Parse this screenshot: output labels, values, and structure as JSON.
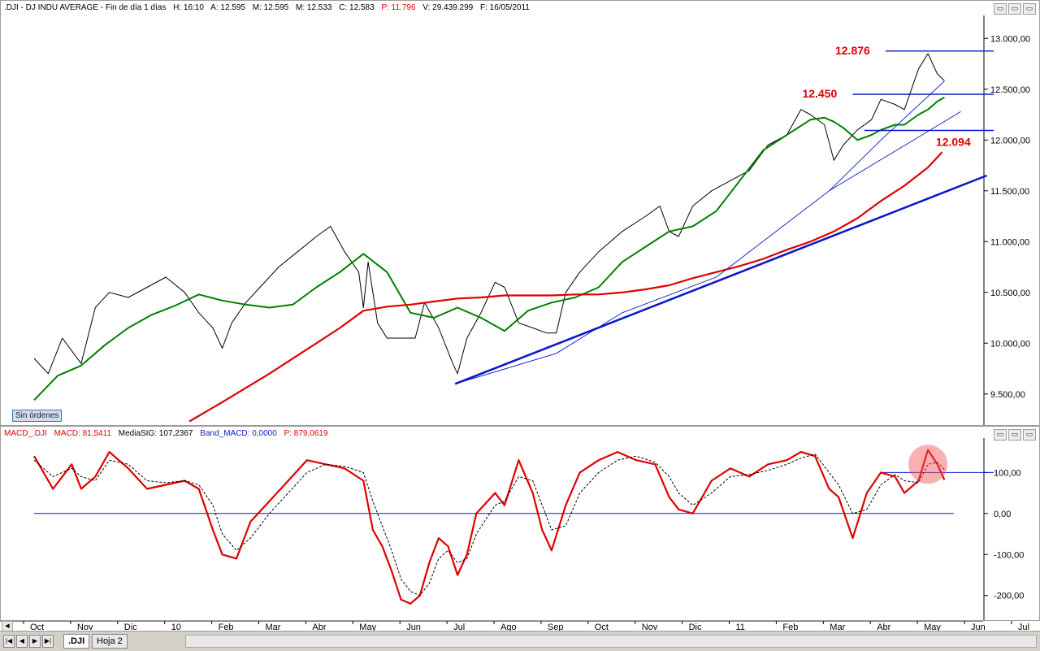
{
  "header": {
    "symbol": ".DJI - DJ INDU AVERAGE - Fin de día 1 días",
    "high": "H: 16:10",
    "open": "A: 12.595",
    "max": "M: 12.595",
    "low": "M: 12.533",
    "close": "C: 12.583",
    "change": "P: 11.796",
    "volume": "V: 29.439.299",
    "date": "F: 16/05/2011"
  },
  "macd_header": {
    "name": "MACD_.DJI",
    "macd": "MACD: 81,5411",
    "signal": "MediaSIG: 107,2367",
    "band": "Band_MACD: 0,0000",
    "p": "P: 879,0619"
  },
  "badge": "Sin órdenes",
  "tabs": [
    ".DJI",
    "Hoja 2"
  ],
  "nav_buttons": [
    "|◀",
    "◀",
    "▶",
    "▶|"
  ],
  "window_buttons": [
    "▭",
    "▭",
    "▭"
  ],
  "colors": {
    "price": "#000000",
    "ma_short": "#008000",
    "ma_long": "#e00000",
    "trend": "#0a18c8",
    "macd": "#e00000",
    "signal": "#000000",
    "annotation": "#e00000"
  },
  "chart_data": [
    {
      "type": "line",
      "panel": "price",
      "y_axis_labels": [
        "13.000,00",
        "12.500,00",
        "12.000,00",
        "11.500,00",
        "11.000,00",
        "10.500,00",
        "10.000,00",
        "9.500,00"
      ],
      "y_ticks": [
        13000,
        12500,
        12000,
        11500,
        11000,
        10500,
        10000,
        9500
      ],
      "ylim": [
        9210,
        13130
      ],
      "x_labels": [
        "Oct",
        "Nov",
        "Dic",
        "10",
        "Feb",
        "Mar",
        "Abr",
        "May",
        "Jun",
        "Jul",
        "Ago",
        "Sep",
        "Oct",
        "Nov",
        "Dic",
        "11",
        "Feb",
        "Mar",
        "Abr",
        "May",
        "Jun",
        "Jul"
      ],
      "x_label_months": [
        0,
        1,
        2,
        3,
        4,
        5,
        6,
        7,
        8,
        9,
        10,
        11,
        12,
        13,
        14,
        15,
        16,
        17,
        18,
        19,
        20,
        21
      ],
      "series": [
        {
          "role": "close",
          "x": [
            0,
            0.3,
            0.6,
            1.0,
            1.3,
            1.6,
            2.0,
            2.4,
            2.8,
            3.2,
            3.5,
            3.8,
            4.0,
            4.2,
            4.5,
            4.8,
            5.2,
            5.6,
            6.0,
            6.3,
            6.6,
            6.9,
            7.0,
            7.1,
            7.3,
            7.5,
            7.8,
            8.1,
            8.3,
            8.6,
            8.9,
            9.0,
            9.2,
            9.5,
            9.8,
            10.0,
            10.3,
            10.6,
            10.9,
            11.1,
            11.3,
            11.6,
            12.0,
            12.5,
            13.0,
            13.3,
            13.5,
            13.7,
            14.0,
            14.4,
            14.8,
            15.2,
            15.6,
            16.0,
            16.3,
            16.5,
            16.8,
            17.0,
            17.2,
            17.5,
            17.8,
            18.0,
            18.3,
            18.5,
            18.8,
            19.0,
            19.2,
            19.35
          ],
          "y": [
            9850,
            9700,
            10050,
            9800,
            10350,
            10500,
            10450,
            10550,
            10650,
            10500,
            10300,
            10150,
            9950,
            10200,
            10400,
            10550,
            10750,
            10900,
            11050,
            11150,
            10900,
            10700,
            10350,
            10800,
            10200,
            10050,
            10050,
            10050,
            10400,
            10150,
            9800,
            9700,
            10050,
            10300,
            10600,
            10550,
            10200,
            10150,
            10100,
            10100,
            10500,
            10700,
            10900,
            11100,
            11250,
            11350,
            11100,
            11050,
            11350,
            11500,
            11600,
            11700,
            11950,
            12050,
            12300,
            12250,
            12150,
            11800,
            11950,
            12100,
            12200,
            12400,
            12350,
            12300,
            12700,
            12850,
            12650,
            12583
          ]
        },
        {
          "role": "ma_short",
          "x": [
            0,
            0.5,
            1.0,
            1.5,
            2.0,
            2.5,
            3.0,
            3.5,
            4.0,
            4.5,
            5.0,
            5.5,
            6.0,
            6.5,
            7.0,
            7.5,
            8.0,
            8.5,
            9.0,
            9.5,
            10.0,
            10.5,
            11.0,
            11.5,
            12.0,
            12.5,
            13.0,
            13.5,
            14.0,
            14.5,
            15.0,
            15.5,
            16.0,
            16.5,
            16.8,
            17.0,
            17.2,
            17.5,
            17.8,
            18.0,
            18.3,
            18.5,
            18.8,
            19.0,
            19.2,
            19.35
          ],
          "y": [
            9440,
            9680,
            9780,
            9980,
            10150,
            10280,
            10370,
            10480,
            10420,
            10380,
            10350,
            10380,
            10550,
            10700,
            10880,
            10700,
            10300,
            10250,
            10350,
            10250,
            10120,
            10320,
            10400,
            10450,
            10550,
            10800,
            10950,
            11100,
            11150,
            11300,
            11600,
            11900,
            12050,
            12200,
            12220,
            12180,
            12120,
            12000,
            12050,
            12100,
            12150,
            12150,
            12250,
            12300,
            12380,
            12420
          ]
        },
        {
          "role": "ma_long",
          "x": [
            3.3,
            4.0,
            5.0,
            6.0,
            6.5,
            7.0,
            7.5,
            8.0,
            8.5,
            9.0,
            9.5,
            10.0,
            10.5,
            11.0,
            11.5,
            12.0,
            12.5,
            13.0,
            13.5,
            14.0,
            14.5,
            15.0,
            15.5,
            16.0,
            16.5,
            17.0,
            17.5,
            18.0,
            18.5,
            19.0,
            19.3
          ],
          "y": [
            9230,
            9420,
            9700,
            10000,
            10150,
            10320,
            10360,
            10380,
            10410,
            10440,
            10450,
            10470,
            10470,
            10470,
            10480,
            10480,
            10500,
            10530,
            10570,
            10640,
            10700,
            10760,
            10830,
            10920,
            11000,
            11100,
            11230,
            11400,
            11550,
            11730,
            11880
          ]
        }
      ],
      "trendlines": [
        {
          "role": "trend_major",
          "x": [
            8.95,
            20.25
          ],
          "y": [
            9600,
            11650
          ]
        },
        {
          "role": "trend_thin",
          "x": [
            8.95,
            11.1,
            12.5,
            14.5,
            16.9,
            19.7
          ],
          "y": [
            9600,
            9900,
            10300,
            10650,
            11500,
            12280
          ]
        },
        {
          "role": "trend_steep",
          "x": [
            16.9,
            18.0,
            19.35
          ],
          "y": [
            11500,
            12000,
            12580
          ]
        },
        {
          "role": "resistance",
          "x": [
            18.1,
            20.4
          ],
          "y": [
            12876,
            12876
          ],
          "label": "12.876"
        },
        {
          "role": "support",
          "x": [
            17.4,
            20.4
          ],
          "y": [
            12450,
            12450
          ],
          "label": "12.450"
        },
        {
          "role": "support",
          "x": [
            17.65,
            20.4
          ],
          "y": [
            12094,
            12094
          ],
          "label": "12.094"
        }
      ]
    },
    {
      "type": "line",
      "panel": "macd",
      "y_axis_labels": [
        "100,00",
        "0,00",
        "-100,00",
        "-200,00"
      ],
      "y_ticks": [
        100,
        0,
        -100,
        -200
      ],
      "ylim": [
        -260,
        180
      ],
      "series": [
        {
          "role": "macd",
          "x": [
            0,
            0.4,
            0.8,
            1.0,
            1.3,
            1.6,
            2.0,
            2.4,
            2.8,
            3.2,
            3.5,
            3.8,
            4.0,
            4.3,
            4.6,
            5.0,
            5.4,
            5.8,
            6.2,
            6.6,
            7.0,
            7.2,
            7.4,
            7.6,
            7.8,
            8.0,
            8.2,
            8.4,
            8.6,
            8.8,
            9.0,
            9.2,
            9.4,
            9.8,
            10.0,
            10.3,
            10.6,
            10.8,
            11.0,
            11.3,
            11.6,
            12.0,
            12.4,
            12.8,
            13.2,
            13.5,
            13.7,
            14.0,
            14.4,
            14.8,
            15.2,
            15.6,
            16.0,
            16.3,
            16.6,
            16.9,
            17.1,
            17.4,
            17.7,
            18.0,
            18.3,
            18.5,
            18.8,
            19.0,
            19.2,
            19.35
          ],
          "y": [
            140,
            60,
            120,
            60,
            90,
            150,
            110,
            60,
            70,
            80,
            60,
            -40,
            -100,
            -110,
            -20,
            30,
            80,
            130,
            120,
            110,
            80,
            -40,
            -80,
            -140,
            -210,
            -220,
            -200,
            -120,
            -60,
            -80,
            -150,
            -100,
            0,
            50,
            20,
            130,
            50,
            -40,
            -90,
            20,
            100,
            130,
            150,
            130,
            120,
            40,
            10,
            0,
            80,
            110,
            90,
            120,
            130,
            150,
            140,
            60,
            40,
            -60,
            50,
            100,
            90,
            50,
            80,
            155,
            120,
            82
          ]
        },
        {
          "role": "signal",
          "x": [
            0,
            0.4,
            0.8,
            1.0,
            1.3,
            1.6,
            2.0,
            2.4,
            2.8,
            3.2,
            3.5,
            3.8,
            4.0,
            4.3,
            4.6,
            5.0,
            5.4,
            5.8,
            6.2,
            6.6,
            7.0,
            7.2,
            7.4,
            7.6,
            7.8,
            8.0,
            8.2,
            8.4,
            8.6,
            8.8,
            9.0,
            9.2,
            9.4,
            9.8,
            10.0,
            10.3,
            10.6,
            10.8,
            11.0,
            11.3,
            11.6,
            12.0,
            12.4,
            12.8,
            13.2,
            13.5,
            13.7,
            14.0,
            14.4,
            14.8,
            15.2,
            15.6,
            16.0,
            16.3,
            16.6,
            16.9,
            17.1,
            17.4,
            17.7,
            18.0,
            18.3,
            18.5,
            18.8,
            19.0,
            19.2,
            19.35
          ],
          "y": [
            130,
            90,
            110,
            90,
            80,
            130,
            120,
            80,
            75,
            80,
            70,
            20,
            -50,
            -90,
            -60,
            0,
            50,
            100,
            120,
            115,
            100,
            30,
            -30,
            -90,
            -160,
            -190,
            -200,
            -170,
            -110,
            -90,
            -120,
            -110,
            -50,
            20,
            30,
            90,
            80,
            20,
            -40,
            -30,
            50,
            100,
            130,
            140,
            125,
            90,
            50,
            20,
            50,
            90,
            95,
            105,
            120,
            135,
            145,
            100,
            70,
            0,
            10,
            70,
            95,
            80,
            75,
            120,
            125,
            107
          ]
        }
      ],
      "hlines": [
        {
          "role": "zero",
          "x": [
            0,
            19.55
          ],
          "y": [
            0,
            0
          ]
        },
        {
          "role": "level",
          "x": [
            18.0,
            20.4
          ],
          "y": [
            100,
            100
          ]
        }
      ],
      "highlight": {
        "x": 19.0,
        "y": 120
      }
    }
  ]
}
